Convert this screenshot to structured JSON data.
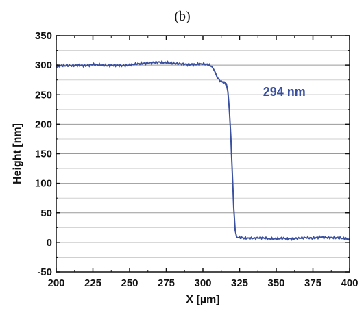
{
  "chart_data": {
    "type": "line",
    "panel_label": "(b)",
    "title": "",
    "xlabel": "X [µm]",
    "ylabel": "Height [nm]",
    "xlim": [
      200,
      400
    ],
    "ylim": [
      -50,
      350
    ],
    "x_ticks": [
      200,
      225,
      250,
      275,
      300,
      325,
      350,
      375,
      400
    ],
    "y_ticks": [
      -50,
      0,
      50,
      100,
      150,
      200,
      250,
      300,
      350
    ],
    "grid": "horizontal",
    "annotation": "294 nm",
    "line_color": "#3a50a0",
    "series": [
      {
        "x": [
          200,
          205,
          210,
          215,
          220,
          225,
          230,
          235,
          240,
          245,
          250,
          255,
          260,
          265,
          270,
          275,
          280,
          285,
          290,
          295,
          300,
          303,
          306,
          308,
          310,
          312,
          314,
          316,
          317,
          318,
          319,
          320,
          321,
          322,
          323,
          325,
          330,
          335,
          340,
          345,
          350,
          355,
          360,
          365,
          370,
          375,
          380,
          385,
          390,
          395,
          400
        ],
        "y": [
          298,
          299,
          299,
          300,
          299,
          301,
          300,
          299,
          300,
          299,
          300,
          302,
          303,
          304,
          305,
          304,
          303,
          302,
          301,
          301,
          302,
          301,
          298,
          290,
          278,
          273,
          271,
          268,
          255,
          225,
          180,
          120,
          60,
          20,
          9,
          8,
          7,
          7,
          8,
          6,
          6,
          7,
          6,
          7,
          8,
          7,
          9,
          8,
          8,
          7,
          5
        ]
      }
    ]
  }
}
